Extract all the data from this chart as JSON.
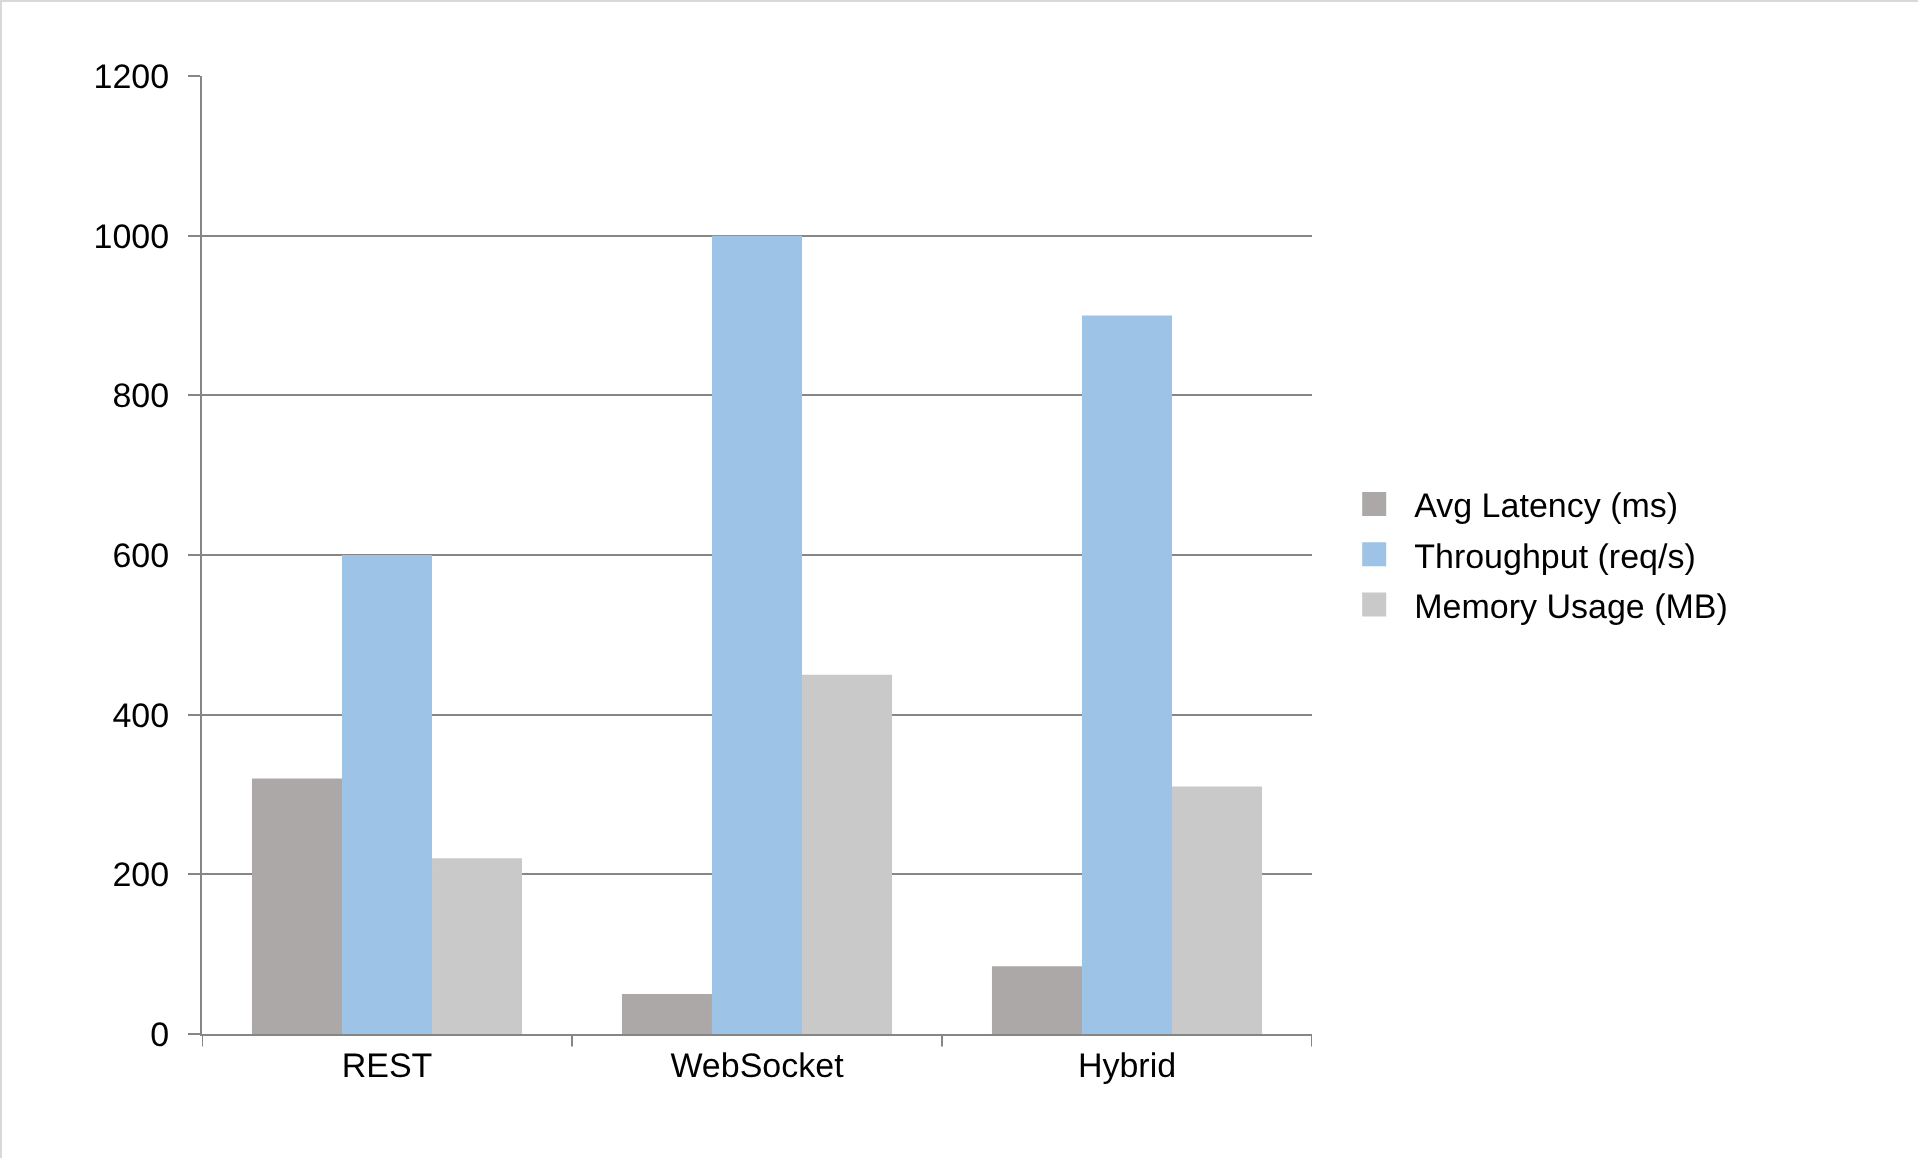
{
  "chart_data": {
    "type": "bar",
    "categories": [
      "REST",
      "WebSocket",
      "Hybrid"
    ],
    "series": [
      {
        "name": "Avg Latency (ms)",
        "color": "#aca8a8",
        "values": [
          320,
          50,
          85
        ]
      },
      {
        "name": "Throughput (req/s)",
        "color": "#9dc3e6",
        "values": [
          600,
          1000,
          900
        ]
      },
      {
        "name": "Memory Usage (MB)",
        "color": "#c9c9c9",
        "values": [
          220,
          450,
          310
        ]
      }
    ],
    "ylim": [
      0,
      1200
    ],
    "yticks": [
      0,
      200,
      400,
      600,
      800,
      1000,
      1200
    ],
    "grid": "y",
    "legend": "right"
  }
}
